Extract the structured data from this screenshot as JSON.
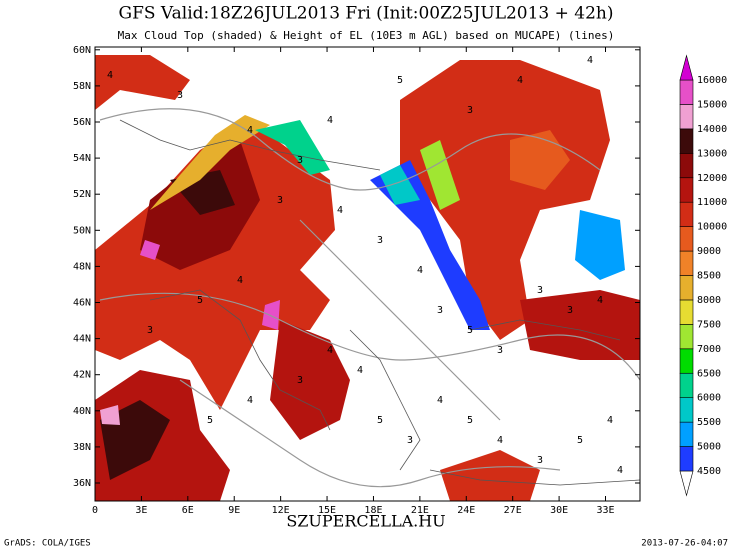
{
  "header": {
    "title": "GFS Valid:18Z26JUL2013 Fri (Init:00Z25JUL2013 + 42h)",
    "subtitle": "Max Cloud Top (shaded) & Height of EL (10E3 m AGL) based on MUCAPE) (lines)"
  },
  "map": {
    "lat_ticks": [
      {
        "value": 60,
        "label": "60N"
      },
      {
        "value": 58,
        "label": "58N"
      },
      {
        "value": 56,
        "label": "56N"
      },
      {
        "value": 54,
        "label": "54N"
      },
      {
        "value": 52,
        "label": "52N"
      },
      {
        "value": 50,
        "label": "50N"
      },
      {
        "value": 48,
        "label": "48N"
      },
      {
        "value": 46,
        "label": "46N"
      },
      {
        "value": 44,
        "label": "44N"
      },
      {
        "value": 42,
        "label": "42N"
      },
      {
        "value": 40,
        "label": "40N"
      },
      {
        "value": 38,
        "label": "38N"
      },
      {
        "value": 36,
        "label": "36N"
      }
    ],
    "lon_ticks": [
      {
        "value": 0,
        "label": "0"
      },
      {
        "value": 3,
        "label": "3E"
      },
      {
        "value": 6,
        "label": "6E"
      },
      {
        "value": 9,
        "label": "9E"
      },
      {
        "value": 12,
        "label": "12E"
      },
      {
        "value": 15,
        "label": "15E"
      },
      {
        "value": 18,
        "label": "18E"
      },
      {
        "value": 21,
        "label": "21E"
      },
      {
        "value": 24,
        "label": "24E"
      },
      {
        "value": 27,
        "label": "27E"
      },
      {
        "value": 30,
        "label": "30E"
      },
      {
        "value": 33,
        "label": "33E"
      }
    ],
    "contour_labels": [
      "4",
      "3",
      "4",
      "3",
      "4",
      "3",
      "4",
      "3",
      "5",
      "3",
      "3",
      "3",
      "4",
      "3",
      "4",
      "4",
      "5",
      "4",
      "3",
      "4",
      "4",
      "5",
      "3",
      "4",
      "5",
      "4",
      "3",
      "5",
      "4",
      "3",
      "5",
      "4",
      "3",
      "4",
      "5",
      "4"
    ]
  },
  "colorbar": {
    "levels": [
      4500,
      5000,
      5500,
      6000,
      6500,
      7000,
      7500,
      8000,
      8500,
      9000,
      10000,
      11000,
      12000,
      13000,
      14000,
      15000,
      16000
    ],
    "colors": [
      "#ffffff",
      "#1e3cff",
      "#00a0ff",
      "#00c8c8",
      "#00d28c",
      "#00dc00",
      "#a0e632",
      "#e6dc32",
      "#e6af2d",
      "#f08228",
      "#e65a1e",
      "#d22d16",
      "#b4140f",
      "#8c0a0a",
      "#3c0a0a",
      "#f0a0d2",
      "#e650c8",
      "#d200d2"
    ]
  },
  "footer": {
    "site": "SZUPERCELLA.HU",
    "credit": "GrADS: COLA/IGES",
    "timestamp": "2013-07-26-04:07"
  }
}
